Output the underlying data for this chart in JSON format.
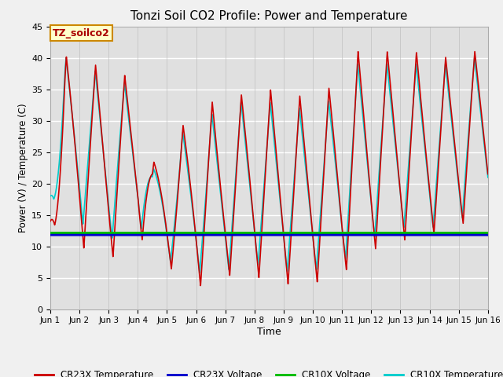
{
  "title": "Tonzi Soil CO2 Profile: Power and Temperature",
  "xlabel": "Time",
  "ylabel": "Power (V) / Temperature (C)",
  "ylim": [
    0,
    45
  ],
  "xlim": [
    0,
    15
  ],
  "xtick_labels": [
    "Jun 1",
    "Jun 2",
    "Jun 3",
    "Jun 4",
    "Jun 5",
    "Jun 6",
    "Jun 7",
    "Jun 8",
    "Jun 9",
    "Jun 10",
    "Jun 11",
    "Jun 12",
    "Jun 13",
    "Jun 14",
    "Jun 15",
    "Jun 16"
  ],
  "ytick_values": [
    0,
    5,
    10,
    15,
    20,
    25,
    30,
    35,
    40,
    45
  ],
  "cr23x_temp_color": "#cc0000",
  "cr23x_volt_color": "#0000cc",
  "cr10x_volt_color": "#00bb00",
  "cr10x_temp_color": "#00cccc",
  "cr23x_volt_value": 11.8,
  "cr10x_volt_value": 12.1,
  "legend_label_cr23x_temp": "CR23X Temperature",
  "legend_label_cr23x_volt": "CR23X Voltage",
  "legend_label_cr10x_volt": "CR10X Voltage",
  "legend_label_cr10x_temp": "CR10X Temperature",
  "annotation_text": "TZ_soilco2",
  "bg_color": "#f0f0f0",
  "plot_bg_color": "#e0e0e0",
  "line_width": 1.2,
  "title_fontsize": 11
}
